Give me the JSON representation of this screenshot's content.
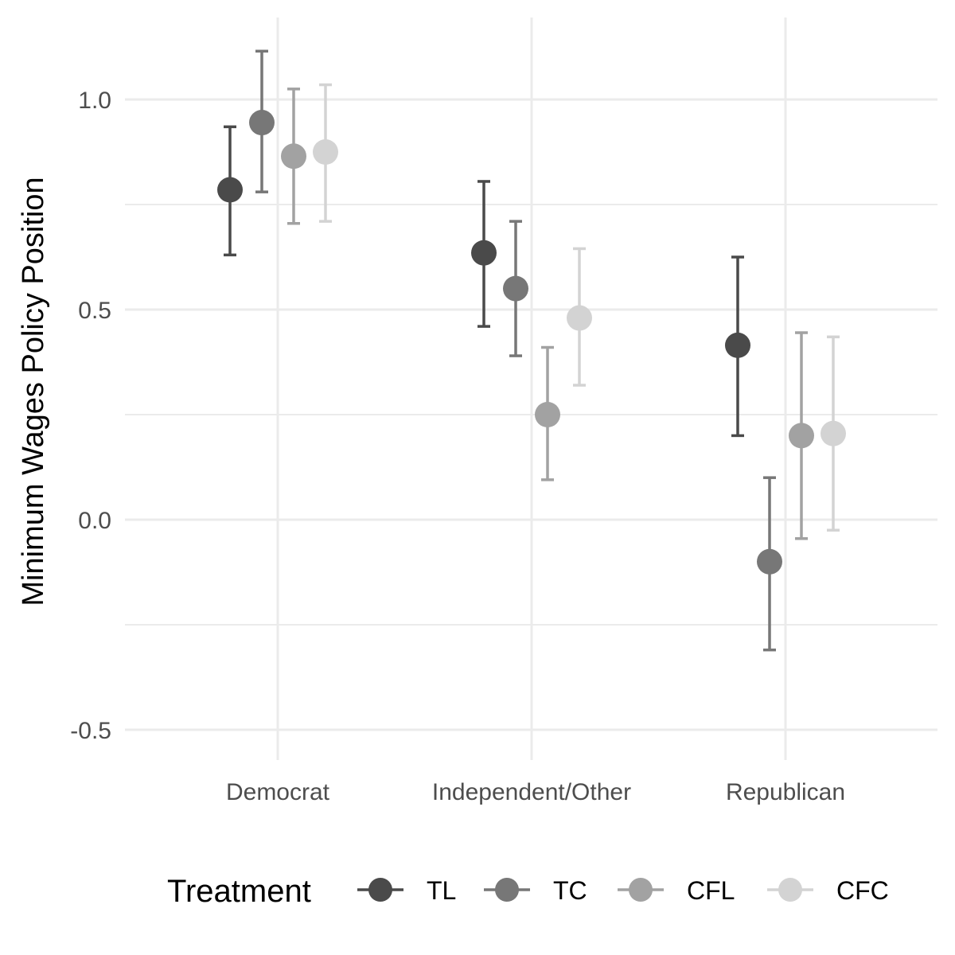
{
  "chart_data": {
    "type": "scatter",
    "subtype": "point-range with error bars, dodged by group",
    "title": "",
    "xlabel": "",
    "ylabel": "Minimum Wages Policy Position",
    "categories": [
      "Democrat",
      "Independent/Other",
      "Republican"
    ],
    "ylim": [
      -0.57,
      1.2
    ],
    "y_ticks": [
      -0.5,
      0.0,
      0.5,
      1.0
    ],
    "y_tick_labels": [
      "-0.5",
      "0.0",
      "0.5",
      "1.0"
    ],
    "grid": true,
    "legend": {
      "title": "Treatment",
      "placement": "bottom"
    },
    "series": [
      {
        "name": "TL",
        "color": "#4a4a4a",
        "values": [
          0.785,
          0.635,
          0.415
        ],
        "lower": [
          0.63,
          0.46,
          0.2
        ],
        "upper": [
          0.935,
          0.805,
          0.625
        ]
      },
      {
        "name": "TC",
        "color": "#777777",
        "values": [
          0.945,
          0.55,
          -0.1
        ],
        "lower": [
          0.78,
          0.39,
          -0.31
        ],
        "upper": [
          1.115,
          0.71,
          0.1
        ]
      },
      {
        "name": "CFL",
        "color": "#a2a2a2",
        "values": [
          0.865,
          0.25,
          0.2
        ],
        "lower": [
          0.705,
          0.095,
          -0.045
        ],
        "upper": [
          1.025,
          0.41,
          0.445
        ]
      },
      {
        "name": "CFC",
        "color": "#d3d3d3",
        "values": [
          0.875,
          0.48,
          0.205
        ],
        "lower": [
          0.71,
          0.32,
          -0.025
        ],
        "upper": [
          1.035,
          0.645,
          0.435
        ]
      }
    ]
  }
}
